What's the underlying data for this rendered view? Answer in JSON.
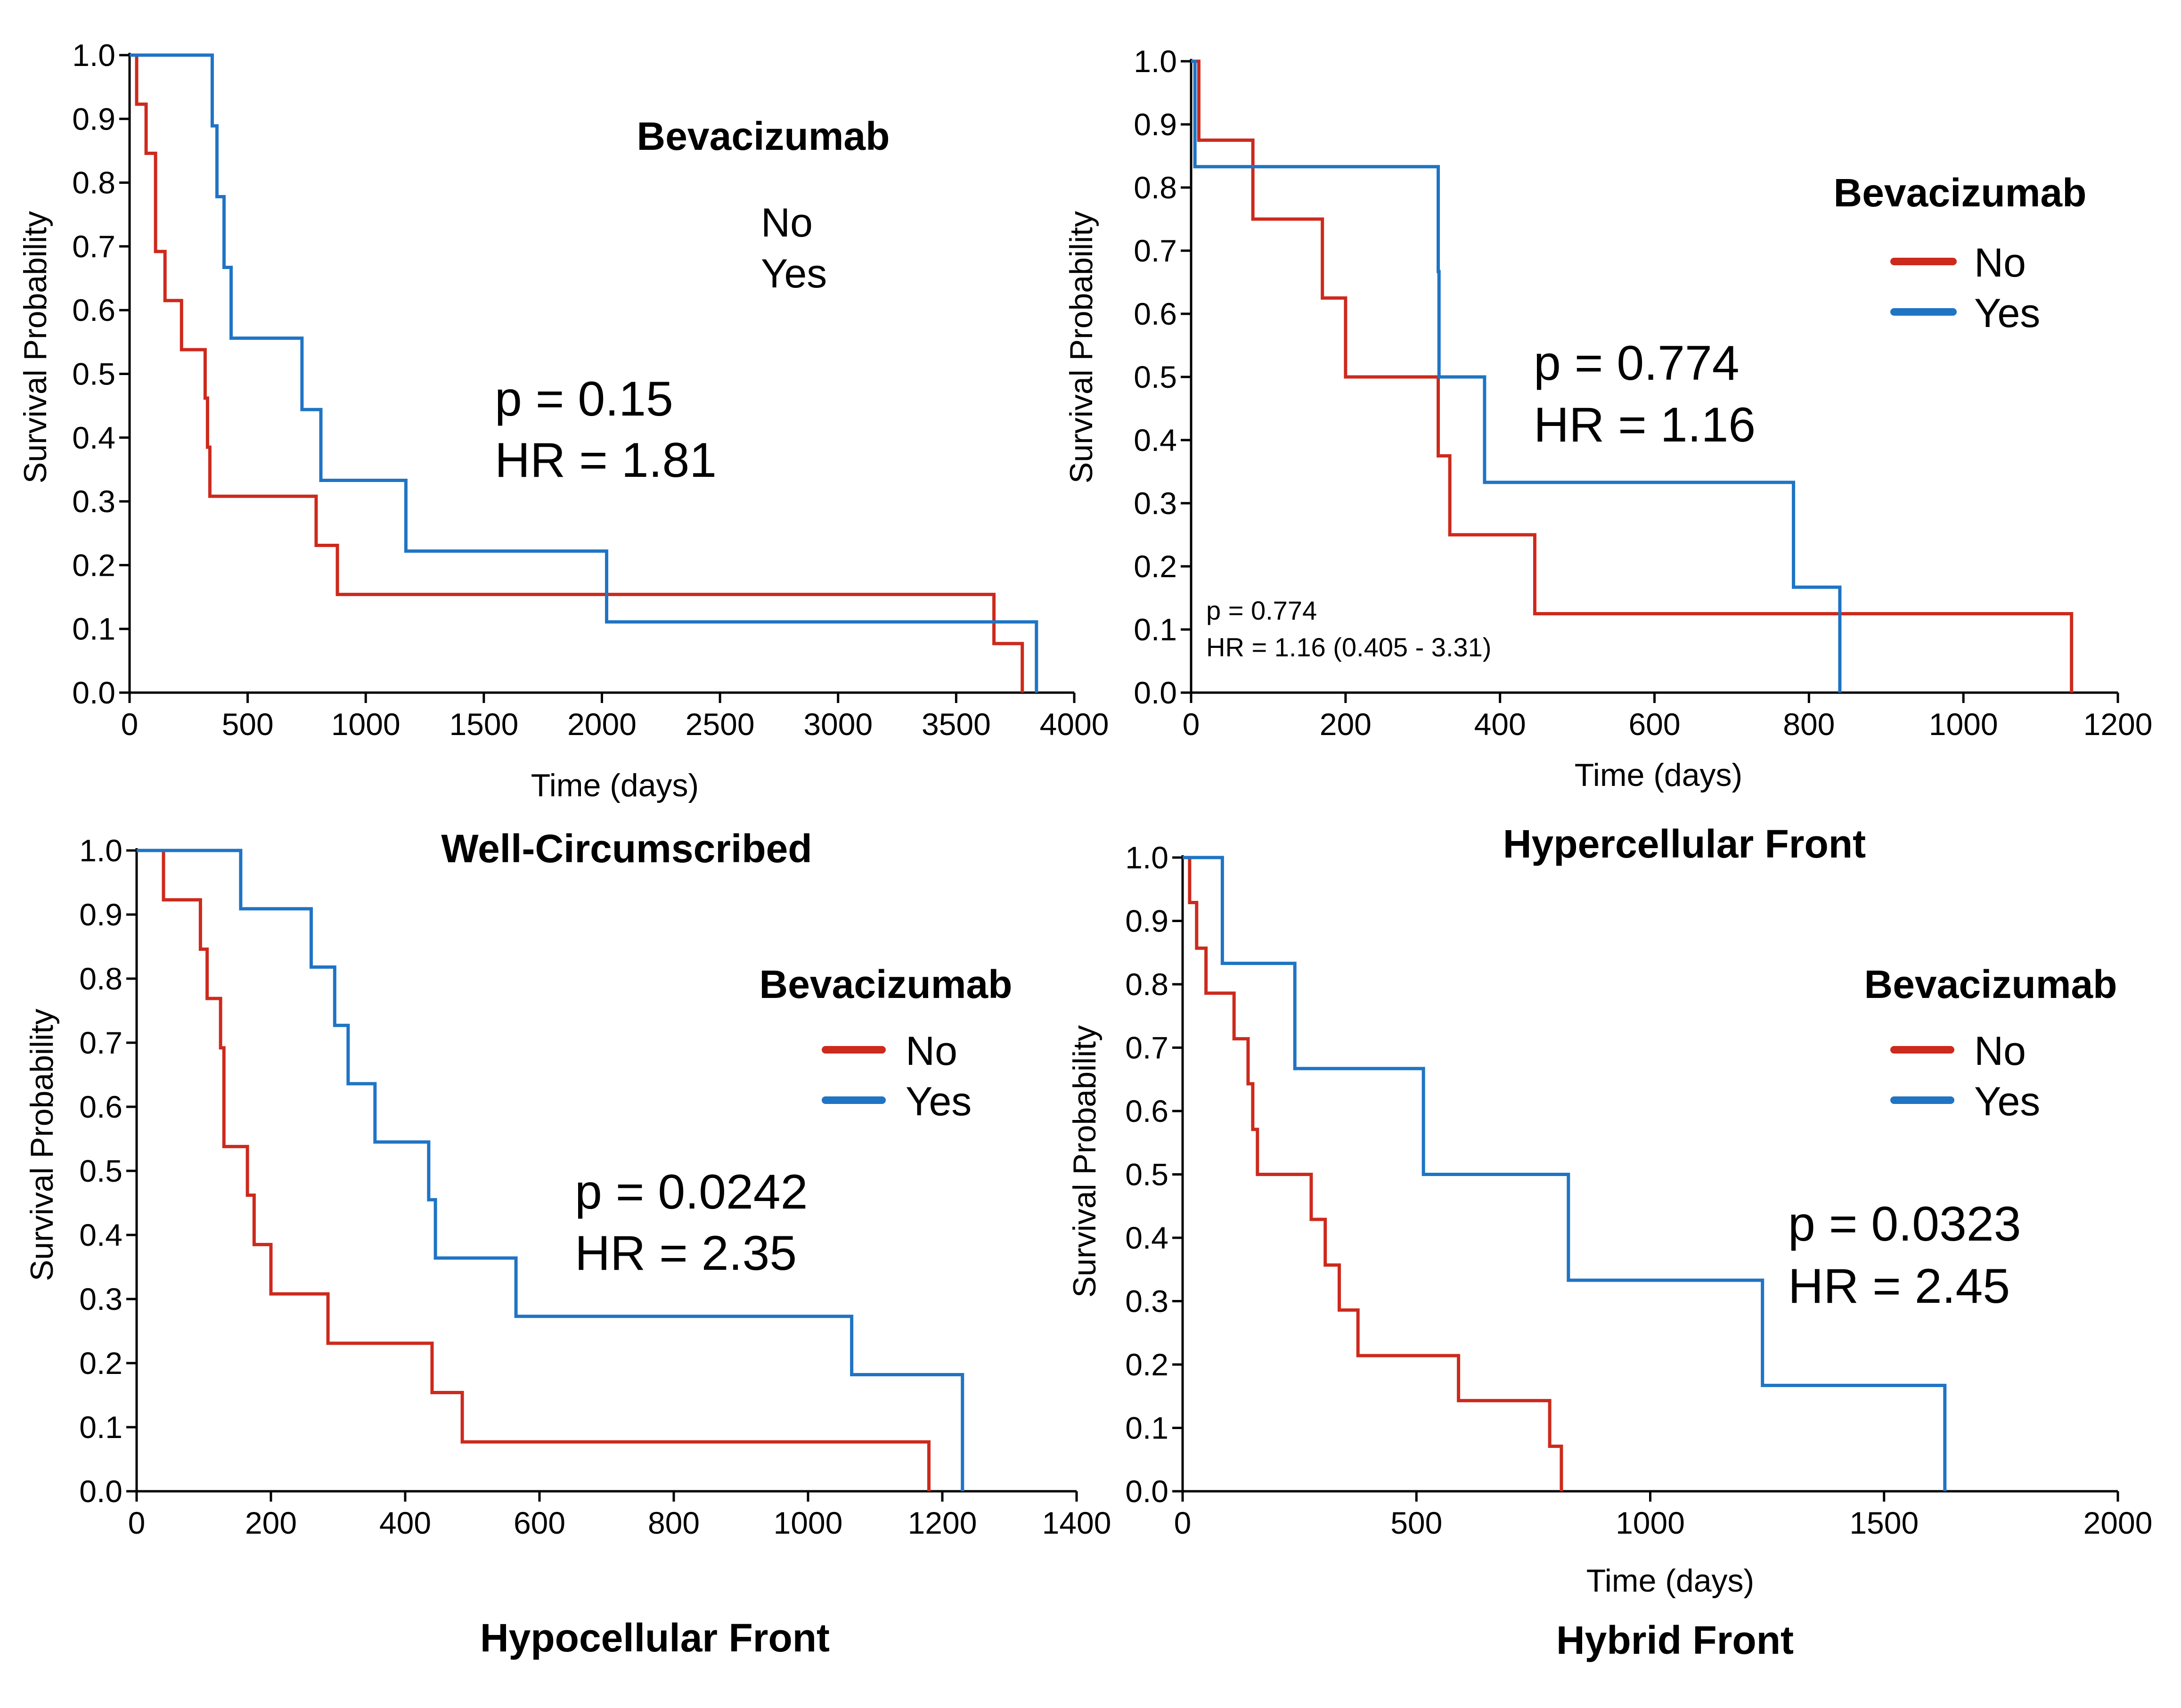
{
  "colors": {
    "no": "#cc2a1d",
    "yes": "#1f74c4",
    "axis": "#000000"
  },
  "chart_data": [
    {
      "type": "line",
      "title": "Well-Circumscribed",
      "xlabel": "Time (days)",
      "ylabel": "Survival Probability",
      "xlim": [
        0,
        4000
      ],
      "ylim": [
        0,
        1
      ],
      "xticks": [
        "0",
        "500",
        "1000",
        "1500",
        "2000",
        "2500",
        "3000",
        "3500",
        "4000"
      ],
      "xtick_values": [
        0,
        500,
        1000,
        1500,
        2000,
        2500,
        3000,
        3500,
        4000
      ],
      "yticks": [
        "0.0",
        "0.1",
        "0.2",
        "0.3",
        "0.4",
        "0.5",
        "0.6",
        "0.7",
        "0.8",
        "0.9",
        "1.0"
      ],
      "legend": {
        "title": "Bevacizumab",
        "items": [
          "No",
          "Yes"
        ],
        "show_swatches": false
      },
      "stats": {
        "p": "p = 0.15",
        "hr": "HR = 1.81"
      },
      "series": [
        {
          "name": "No",
          "color_key": "no",
          "points": [
            [
              0,
              1.0
            ],
            [
              30,
              0.923
            ],
            [
              70,
              0.846
            ],
            [
              110,
              0.692
            ],
            [
              150,
              0.615
            ],
            [
              220,
              0.538
            ],
            [
              320,
              0.462
            ],
            [
              330,
              0.385
            ],
            [
              340,
              0.308
            ],
            [
              790,
              0.231
            ],
            [
              880,
              0.154
            ],
            [
              3660,
              0.077
            ],
            [
              3780,
              0.0
            ]
          ]
        },
        {
          "name": "Yes",
          "color_key": "yes",
          "points": [
            [
              0,
              1.0
            ],
            [
              350,
              0.889
            ],
            [
              370,
              0.778
            ],
            [
              400,
              0.667
            ],
            [
              430,
              0.556
            ],
            [
              730,
              0.444
            ],
            [
              810,
              0.333
            ],
            [
              1170,
              0.222
            ],
            [
              2020,
              0.111
            ],
            [
              3840,
              0.0
            ]
          ]
        }
      ]
    },
    {
      "type": "line",
      "title": "Hypercellular Front",
      "xlabel": "Time (days)",
      "ylabel": "Survival Probability",
      "xlim": [
        0,
        1200
      ],
      "ylim": [
        0,
        1
      ],
      "xticks": [
        "0",
        "200",
        "400",
        "600",
        "800",
        "1000",
        "1200"
      ],
      "xtick_values": [
        0,
        200,
        400,
        600,
        800,
        1000,
        1200
      ],
      "yticks": [
        "0.0",
        "0.1",
        "0.2",
        "0.3",
        "0.4",
        "0.5",
        "0.6",
        "0.7",
        "0.8",
        "0.9",
        "1.0"
      ],
      "legend": {
        "title": "Bevacizumab",
        "items": [
          "No",
          "Yes"
        ],
        "show_swatches": true
      },
      "stats": {
        "p": "p = 0.774",
        "hr": "HR = 1.16"
      },
      "annotation": {
        "p": "p = 0.774",
        "hr": "HR = 1.16 (0.405 - 3.31)"
      },
      "series": [
        {
          "name": "No",
          "color_key": "no",
          "points": [
            [
              0,
              1.0
            ],
            [
              10,
              0.875
            ],
            [
              80,
              0.75
            ],
            [
              170,
              0.625
            ],
            [
              200,
              0.5
            ],
            [
              320,
              0.375
            ],
            [
              335,
              0.25
            ],
            [
              445,
              0.125
            ],
            [
              1140,
              0.0
            ]
          ]
        },
        {
          "name": "Yes",
          "color_key": "yes",
          "points": [
            [
              0,
              1.0
            ],
            [
              5,
              0.833
            ],
            [
              320,
              0.667
            ],
            [
              321,
              0.5
            ],
            [
              380,
              0.333
            ],
            [
              780,
              0.167
            ],
            [
              840,
              0.0
            ]
          ]
        }
      ]
    },
    {
      "type": "line",
      "title": "Hypocellular Front",
      "xlabel": "",
      "ylabel": "Survival Probability",
      "xlim": [
        0,
        1400
      ],
      "ylim": [
        0,
        1
      ],
      "xticks": [
        "0",
        "200",
        "400",
        "600",
        "800",
        "1000",
        "1200",
        "1400"
      ],
      "xtick_values": [
        0,
        200,
        400,
        600,
        800,
        1000,
        1200,
        1400
      ],
      "yticks": [
        "0.0",
        "0.1",
        "0.2",
        "0.3",
        "0.4",
        "0.5",
        "0.6",
        "0.7",
        "0.8",
        "0.9",
        "1.0"
      ],
      "legend": {
        "title": "Bevacizumab",
        "items": [
          "No",
          "Yes"
        ],
        "show_swatches": true
      },
      "stats": {
        "p": "p = 0.0242",
        "hr": "HR = 2.35"
      },
      "series": [
        {
          "name": "No",
          "color_key": "no",
          "points": [
            [
              0,
              1.0
            ],
            [
              40,
              0.923
            ],
            [
              95,
              0.846
            ],
            [
              105,
              0.769
            ],
            [
              125,
              0.692
            ],
            [
              130,
              0.538
            ],
            [
              165,
              0.462
            ],
            [
              175,
              0.385
            ],
            [
              200,
              0.308
            ],
            [
              285,
              0.231
            ],
            [
              440,
              0.154
            ],
            [
              485,
              0.077
            ],
            [
              1180,
              0.0
            ]
          ]
        },
        {
          "name": "Yes",
          "color_key": "yes",
          "points": [
            [
              0,
              1.0
            ],
            [
              155,
              0.909
            ],
            [
              260,
              0.818
            ],
            [
              295,
              0.727
            ],
            [
              315,
              0.636
            ],
            [
              355,
              0.545
            ],
            [
              435,
              0.455
            ],
            [
              445,
              0.364
            ],
            [
              565,
              0.273
            ],
            [
              1065,
              0.182
            ],
            [
              1230,
              0.0
            ]
          ]
        }
      ]
    },
    {
      "type": "line",
      "title": "Hybrid Front",
      "xlabel": "Time (days)",
      "ylabel": "Survival Probability",
      "xlim": [
        0,
        2000
      ],
      "ylim": [
        0,
        1
      ],
      "xticks": [
        "0",
        "500",
        "1000",
        "1500",
        "2000"
      ],
      "xtick_values": [
        0,
        500,
        1000,
        1500,
        2000
      ],
      "yticks": [
        "0.0",
        "0.1",
        "0.2",
        "0.3",
        "0.4",
        "0.5",
        "0.6",
        "0.7",
        "0.8",
        "0.9",
        "1.0"
      ],
      "legend": {
        "title": "Bevacizumab",
        "items": [
          "No",
          "Yes"
        ],
        "show_swatches": true
      },
      "stats": {
        "p": "p = 0.0323",
        "hr": "HR = 2.45"
      },
      "series": [
        {
          "name": "No",
          "color_key": "no",
          "points": [
            [
              0,
              1.0
            ],
            [
              15,
              0.929
            ],
            [
              30,
              0.857
            ],
            [
              50,
              0.786
            ],
            [
              110,
              0.714
            ],
            [
              140,
              0.643
            ],
            [
              150,
              0.571
            ],
            [
              160,
              0.5
            ],
            [
              275,
              0.429
            ],
            [
              305,
              0.357
            ],
            [
              335,
              0.286
            ],
            [
              375,
              0.214
            ],
            [
              590,
              0.143
            ],
            [
              785,
              0.071
            ],
            [
              810,
              0.0
            ]
          ]
        },
        {
          "name": "Yes",
          "color_key": "yes",
          "points": [
            [
              0,
              1.0
            ],
            [
              85,
              0.833
            ],
            [
              240,
              0.667
            ],
            [
              515,
              0.5
            ],
            [
              825,
              0.333
            ],
            [
              1240,
              0.167
            ],
            [
              1630,
              0.0
            ]
          ]
        }
      ]
    }
  ]
}
